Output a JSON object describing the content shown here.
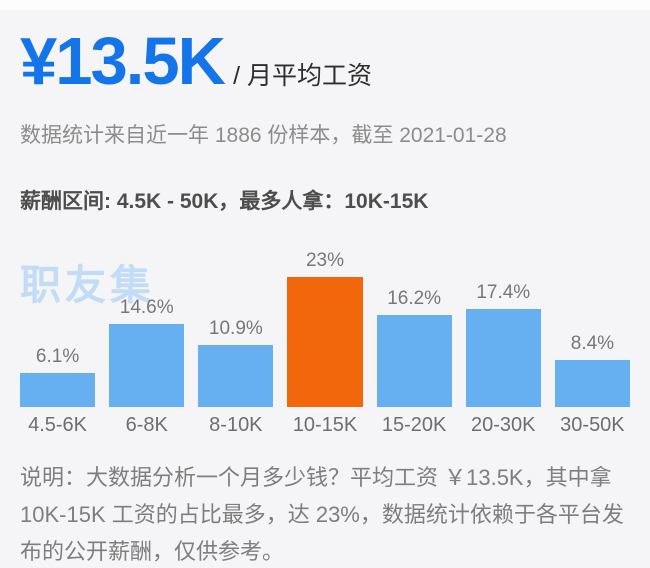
{
  "header": {
    "average_salary": "¥13.5K",
    "unit_label": "/ 月平均工资",
    "sample_note": "数据统计来自近一年 1886 份样本，截至 2021-01-28"
  },
  "summary": {
    "range_text": "薪酬区间: 4.5K - 50K，最多人拿：10K-15K"
  },
  "watermark": "职友集",
  "chart_data": {
    "type": "bar",
    "categories": [
      "4.5-6K",
      "6-8K",
      "8-10K",
      "10-15K",
      "15-20K",
      "20-30K",
      "30-50K"
    ],
    "values": [
      6.1,
      14.6,
      10.9,
      23,
      16.2,
      17.4,
      8.4
    ],
    "value_labels": [
      "6.1%",
      "14.6%",
      "10.9%",
      "23%",
      "16.2%",
      "17.4%",
      "8.4%"
    ],
    "highlight_index": 3,
    "bar_color": "#66aff0",
    "highlight_color": "#f2670b",
    "ylim": [
      0,
      23
    ],
    "grid": false,
    "legend": false,
    "xlabel": "",
    "ylabel": ""
  },
  "footnote": "说明：大数据分析一个月多少钱？平均工资 ￥13.5K，其中拿 10K-15K 工资的占比最多，达 23%，数据统计依赖于各平台发布的公开薪酬，仅供参考。"
}
